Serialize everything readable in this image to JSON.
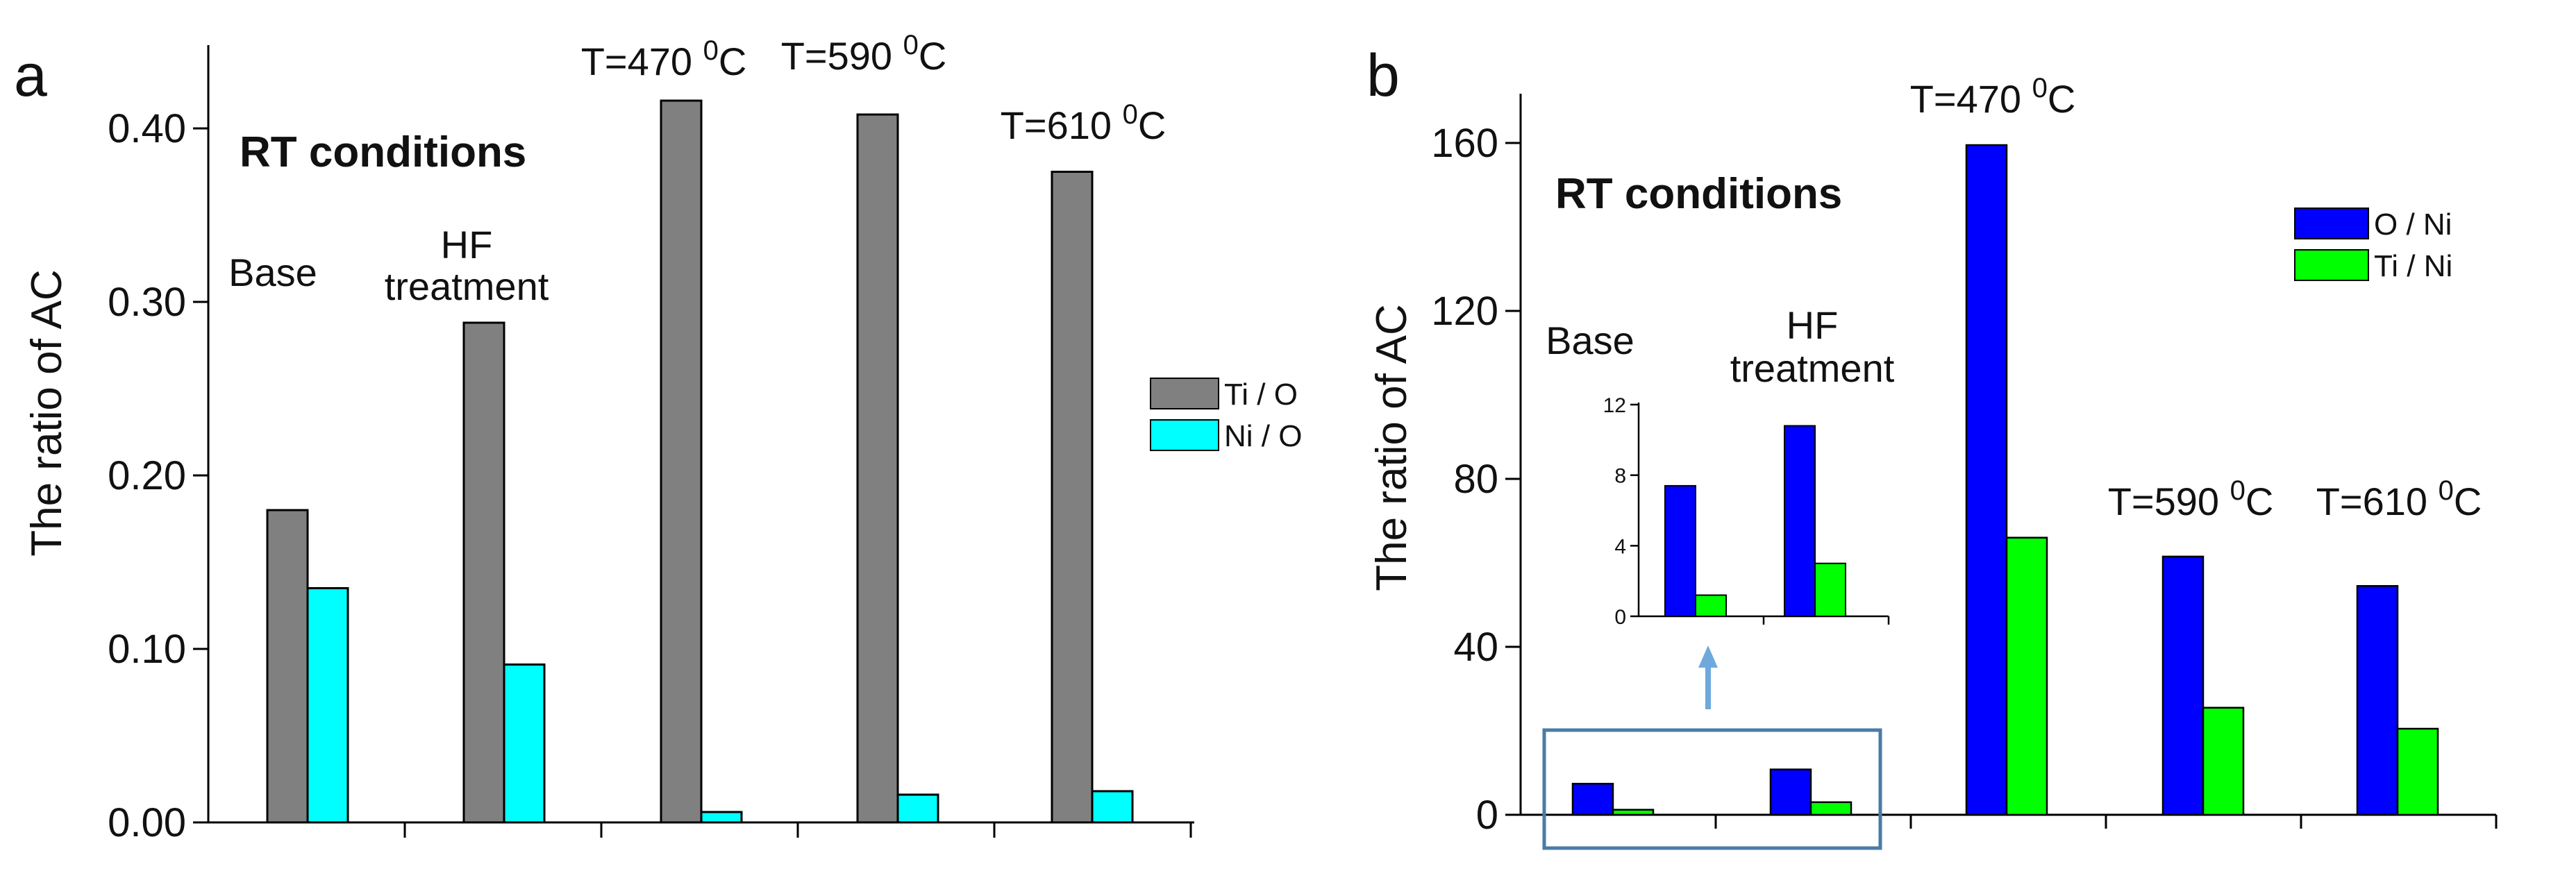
{
  "colors": {
    "ti_o": "#808080",
    "ni_o": "#00ffff",
    "o_ni": "#0000ff",
    "ti_ni": "#00ff00",
    "axis": "#000000",
    "highlight": "#4a7ba7",
    "arrow": "#6fa8dc"
  },
  "chart_data": [
    {
      "panel": "a",
      "type": "bar",
      "title": "RT conditions",
      "ylabel": "The ratio of AC",
      "xlabel": "",
      "ylim": [
        0,
        0.45
      ],
      "yticks": [
        "0.00",
        "0.10",
        "0.20",
        "0.30",
        "0.40"
      ],
      "ytick_values": [
        0,
        0.1,
        0.2,
        0.3,
        0.4
      ],
      "categories": [
        "Base",
        "HF treatment",
        "T=470 0C",
        "T=590 0C",
        "T=610 0C"
      ],
      "condition_labels": [
        {
          "lines": [
            "Base"
          ]
        },
        {
          "lines": [
            "HF",
            "treatment"
          ]
        },
        {
          "lines": [
            "T=470 ",
            "0",
            "C"
          ]
        },
        {
          "lines": [
            "T=590 ",
            "0",
            "C"
          ]
        },
        {
          "lines": [
            "T=610 ",
            "0",
            "C"
          ]
        }
      ],
      "series": [
        {
          "name": "Ti / O",
          "values": [
            0.18,
            0.288,
            0.416,
            0.408,
            0.375
          ]
        },
        {
          "name": "Ni / O",
          "values": [
            0.135,
            0.091,
            0.006,
            0.016,
            0.018
          ]
        }
      ],
      "legend_position": "right"
    },
    {
      "panel": "b",
      "type": "bar",
      "title": "RT conditions",
      "ylabel": "The ratio of AC",
      "xlabel": "",
      "ylim": [
        0,
        170
      ],
      "yticks": [
        "0",
        "40",
        "80",
        "120",
        "160"
      ],
      "ytick_values": [
        0,
        40,
        80,
        120,
        160
      ],
      "categories": [
        "Base",
        "HF treatment",
        "T=470 0C",
        "T=590 0C",
        "T=610 0C"
      ],
      "condition_labels": [
        {
          "lines": [
            "Base"
          ]
        },
        {
          "lines": [
            "HF",
            "treatment"
          ]
        },
        {
          "lines": [
            "T=470 ",
            "0",
            "C"
          ]
        },
        {
          "lines": [
            "T=590 ",
            "0",
            "C"
          ]
        },
        {
          "lines": [
            "T=610 ",
            "0",
            "C"
          ]
        }
      ],
      "series": [
        {
          "name": "O / Ni",
          "values": [
            7.4,
            10.8,
            159.5,
            61.5,
            54.5
          ]
        },
        {
          "name": "Ti / Ni",
          "values": [
            1.2,
            3.0,
            66.0,
            25.5,
            20.5
          ]
        }
      ],
      "legend_position": "top-right",
      "inset": {
        "ylim": [
          0,
          12
        ],
        "yticks": [
          "0",
          "4",
          "8",
          "12"
        ],
        "ytick_values": [
          0,
          4,
          8,
          12
        ],
        "categories": [
          "Base",
          "HF treatment"
        ],
        "series": [
          {
            "name": "O / Ni",
            "values": [
              7.4,
              10.8
            ]
          },
          {
            "name": "Ti / Ni",
            "values": [
              1.2,
              3.0
            ]
          }
        ]
      }
    }
  ]
}
